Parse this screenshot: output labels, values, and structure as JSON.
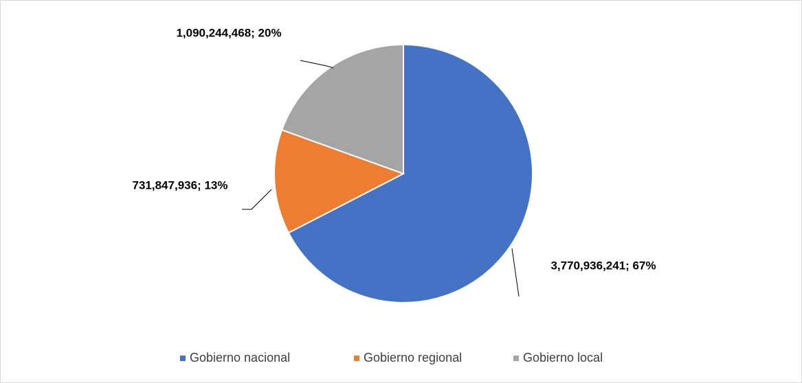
{
  "chart_data": {
    "type": "pie",
    "categories": [
      "Gobierno nacional",
      "Gobierno regional",
      "Gobierno local"
    ],
    "values": [
      3770936241,
      731847936,
      1090244468
    ],
    "value_labels": [
      "3,770,936,241; 67%",
      "731,847,936; 13%",
      "1,090,244,468; 20%"
    ],
    "colors": [
      "#4472c4",
      "#ed7d31",
      "#a5a5a5"
    ],
    "legend": "bottom"
  }
}
